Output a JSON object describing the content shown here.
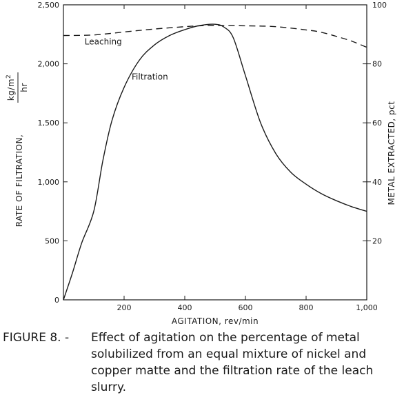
{
  "chart_data": {
    "type": "line",
    "xlabel": "AGITATION, rev/min",
    "ylabel_left_main": "RATE OF FILTRATION,",
    "ylabel_left_unit": "kg/m",
    "ylabel_left_unit_sup": "2",
    "ylabel_left_unit_den": "hr",
    "ylabel_right": "METAL EXTRACTED, pct",
    "xlim": [
      0,
      1000
    ],
    "ylim_left": [
      0,
      2500
    ],
    "ylim_right": [
      0,
      100
    ],
    "x_ticks": [
      200,
      400,
      600,
      800,
      1000
    ],
    "x_tick_labels": [
      "200",
      "400",
      "600",
      "800",
      "1,000"
    ],
    "y_left_ticks": [
      0,
      500,
      1000,
      1500,
      2000,
      2500
    ],
    "y_left_tick_labels": [
      "0",
      "500",
      "1,000",
      "1,500",
      "2,000",
      "2,500"
    ],
    "y_right_ticks": [
      20,
      40,
      60,
      80,
      100
    ],
    "y_right_tick_labels": [
      "20",
      "40",
      "60",
      "80",
      "100"
    ],
    "series": [
      {
        "name": "Filtration",
        "axis": "left",
        "style": "solid",
        "x": [
          0,
          30,
          60,
          100,
          130,
          160,
          200,
          250,
          300,
          350,
          400,
          450,
          500,
          530,
          560,
          600,
          650,
          700,
          750,
          800,
          850,
          900,
          950,
          1000
        ],
        "y": [
          0,
          230,
          480,
          750,
          1180,
          1520,
          1800,
          2030,
          2160,
          2240,
          2290,
          2325,
          2335,
          2310,
          2220,
          1900,
          1500,
          1240,
          1080,
          980,
          900,
          840,
          790,
          750
        ]
      },
      {
        "name": "Leaching",
        "axis": "right",
        "style": "dashed",
        "x": [
          0,
          100,
          200,
          300,
          400,
          450,
          500,
          600,
          700,
          800,
          850,
          900,
          950,
          1000
        ],
        "y": [
          89.6,
          89.8,
          90.8,
          91.8,
          92.6,
          92.9,
          93.0,
          92.9,
          92.6,
          91.5,
          90.7,
          89.3,
          87.7,
          85.6
        ]
      }
    ],
    "annotations": [
      {
        "text": "Leaching",
        "series": "Leaching"
      },
      {
        "text": "Filtration",
        "series": "Filtration"
      }
    ],
    "colors": {
      "ink": "#1a1a1a",
      "background": "#ffffff"
    },
    "grid": false
  },
  "caption": {
    "label": "FIGURE 8. -",
    "text": "Effect of agitation on the percentage of metal solubilized from an equal mixture of nickel and copper matte and the filtration rate of the leach slurry."
  }
}
